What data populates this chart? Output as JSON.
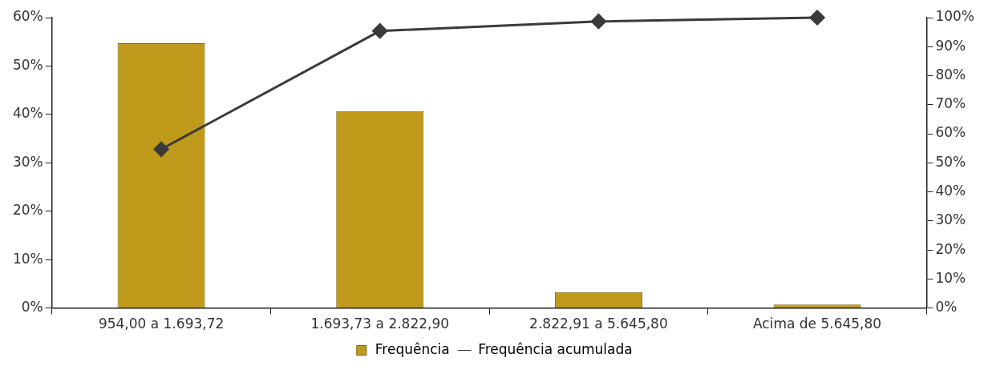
{
  "chart_data": {
    "type": "bar",
    "categories": [
      "954,00 a 1.693,72",
      "1.693,73 a 2.822,90",
      "2.822,91 a 5.645,80",
      "Acima de 5.645,80"
    ],
    "series": [
      {
        "name": "Frequência",
        "color": "#c09a1a",
        "values": [
          54.7,
          40.7,
          3.3,
          0.7
        ]
      },
      {
        "name": "Frequência acumulada",
        "type": "line",
        "axis": "y2",
        "color": "#3a3a3a",
        "values": [
          54.7,
          95.4,
          98.7,
          100
        ],
        "marker": "diamond"
      }
    ],
    "ylim": [
      0,
      60
    ],
    "yticks": [
      {
        "value": 0,
        "label": "0%"
      },
      {
        "value": 10,
        "label": "10%"
      },
      {
        "value": 20,
        "label": "20%"
      },
      {
        "value": 30,
        "label": "30%"
      },
      {
        "value": 40,
        "label": "40%"
      },
      {
        "value": 50,
        "label": "50%"
      },
      {
        "value": 60,
        "label": "60%"
      }
    ],
    "y2lim": [
      0,
      100
    ],
    "y2ticks": [
      {
        "value": 0,
        "label": "0%"
      },
      {
        "value": 10,
        "label": "10%"
      },
      {
        "value": 20,
        "label": "20%"
      },
      {
        "value": 30,
        "label": "30%"
      },
      {
        "value": 40,
        "label": "40%"
      },
      {
        "value": 50,
        "label": "50%"
      },
      {
        "value": 60,
        "label": "60%"
      },
      {
        "value": 70,
        "label": "70%"
      },
      {
        "value": 80,
        "label": "80%"
      },
      {
        "value": 90,
        "label": "90%"
      },
      {
        "value": 100,
        "label": "100%"
      }
    ],
    "grid": false,
    "legend": "bottom"
  }
}
